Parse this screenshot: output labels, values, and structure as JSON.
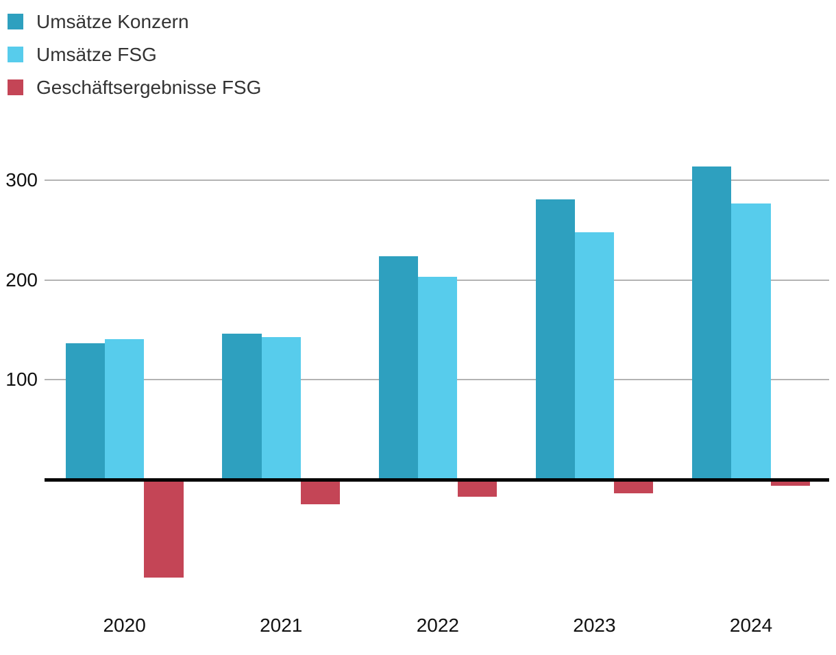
{
  "legend": {
    "items": [
      {
        "label": "Umsätze Konzern",
        "color": "#2EA0BF",
        "icon": "legend-swatch-teal"
      },
      {
        "label": "Umsätze FSG",
        "color": "#57CCEC",
        "icon": "legend-swatch-cyan"
      },
      {
        "label": "Geschäftsergebnisse FSG",
        "color": "#C44556",
        "icon": "legend-swatch-red"
      }
    ]
  },
  "chart_data": {
    "type": "bar",
    "categories": [
      "2020",
      "2021",
      "2022",
      "2023",
      "2024"
    ],
    "series": [
      {
        "name": "Umsätze Konzern",
        "color": "#2EA0BF",
        "values": [
          137,
          146,
          224,
          281,
          314
        ]
      },
      {
        "name": "Umsätze FSG",
        "color": "#57CCEC",
        "values": [
          141,
          143,
          203,
          248,
          277
        ]
      },
      {
        "name": "Geschäftsergebnisse FSG",
        "color": "#C44556",
        "values": [
          -98,
          -25,
          -17,
          -14,
          -6
        ]
      }
    ],
    "title": "",
    "xlabel": "",
    "ylabel": "",
    "yticks": [
      100,
      200,
      300
    ],
    "ylim": [
      -110,
      330
    ],
    "grid": "horizontal-only",
    "legend_position": "top-left",
    "baseline": 0,
    "colors": {
      "gridline": "#b3b3b3",
      "zero_line": "#000000",
      "axis_text": "#111111",
      "legend_text": "#333333",
      "background": "#ffffff"
    }
  }
}
